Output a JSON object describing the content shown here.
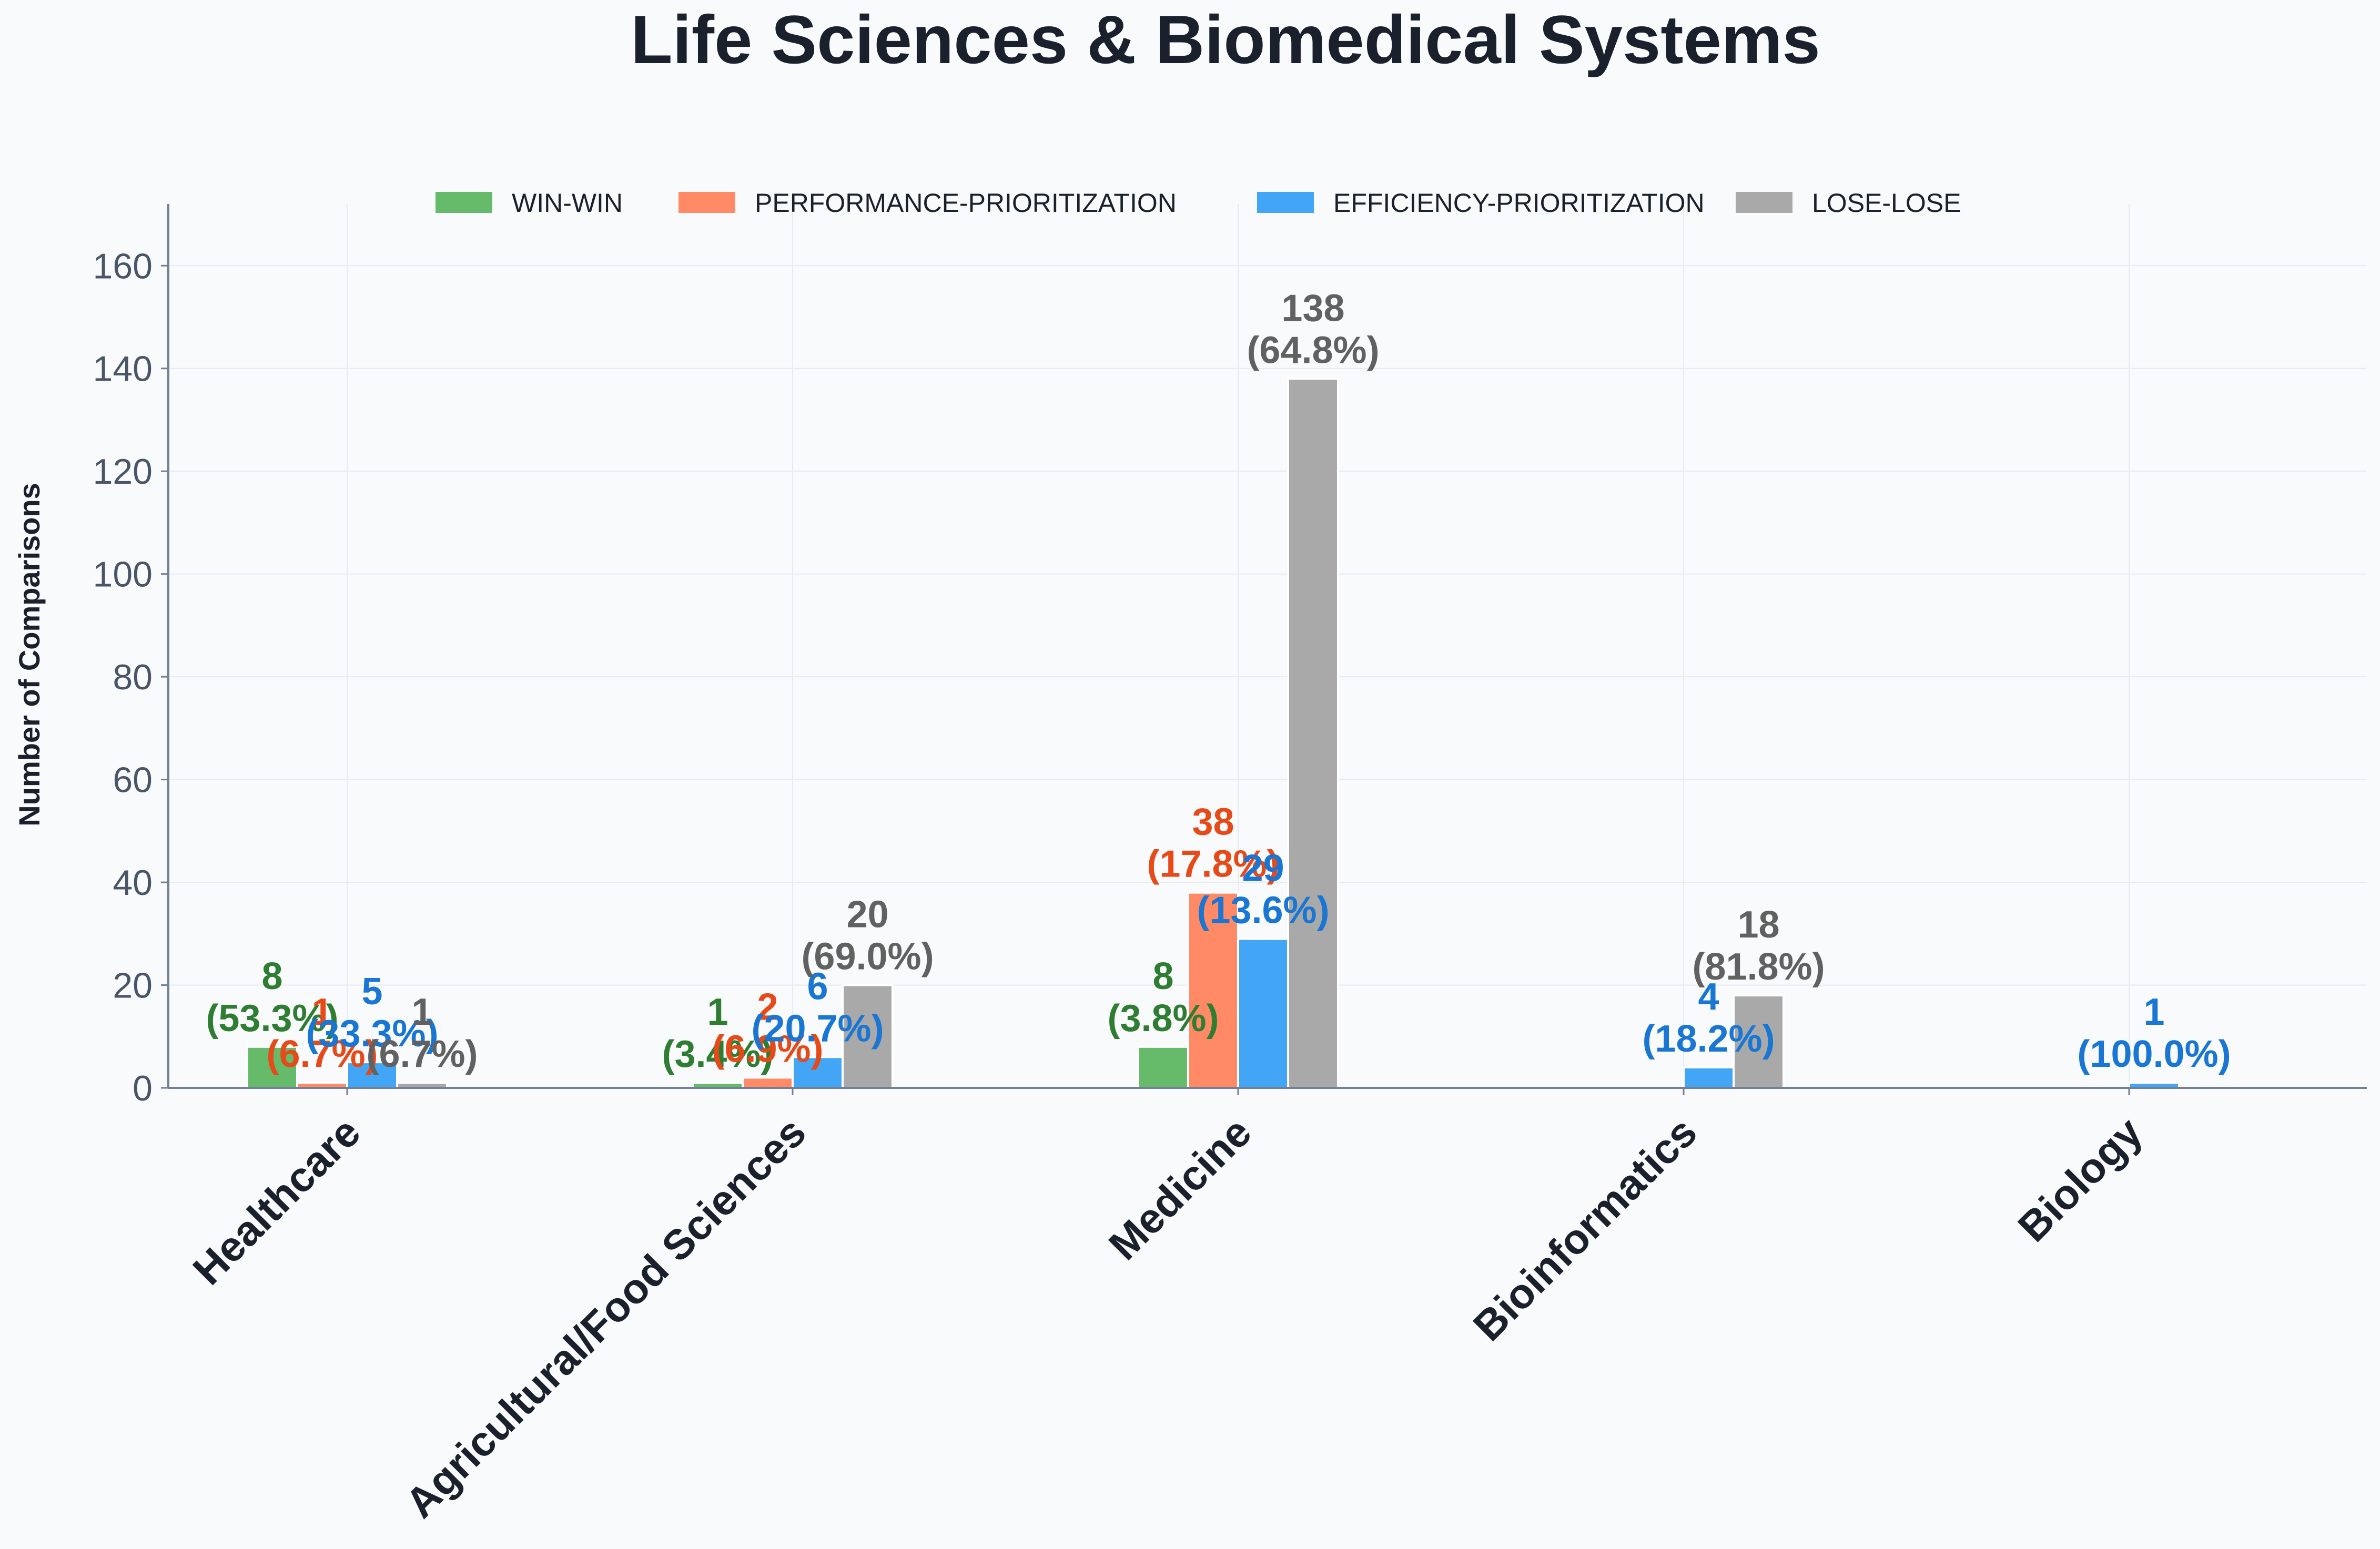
{
  "chart_data": {
    "type": "bar",
    "title": "Life Sciences & Biomedical Systems",
    "xlabel": "",
    "ylabel": "Number of Comparisons",
    "ylim": [
      0,
      172
    ],
    "yticks": [
      0,
      20,
      40,
      60,
      80,
      100,
      120,
      140,
      160
    ],
    "grid": true,
    "legend_position": "top-center",
    "categories": [
      "Healthcare",
      "Agricultural/Food Sciences",
      "Medicine",
      "Bioinformatics",
      "Biology"
    ],
    "series": [
      {
        "name": "WIN-WIN",
        "color": "#66bb6a",
        "label_color": "#2e7d32",
        "values": [
          8,
          1,
          8,
          0,
          0
        ],
        "percents": [
          "53.3%",
          "3.4%",
          "3.8%",
          "",
          ""
        ]
      },
      {
        "name": "PERFORMANCE-PRIORITIZATION",
        "color": "#ff8a65",
        "label_color": "#e64a19",
        "values": [
          1,
          2,
          38,
          0,
          0
        ],
        "percents": [
          "6.7%",
          "6.9%",
          "17.8%",
          "",
          ""
        ]
      },
      {
        "name": "EFFICIENCY-PRIORITIZATION",
        "color": "#42a5f5",
        "label_color": "#1976d2",
        "values": [
          5,
          6,
          29,
          4,
          1
        ],
        "percents": [
          "33.3%",
          "20.7%",
          "13.6%",
          "18.2%",
          "100.0%"
        ]
      },
      {
        "name": "LOSE-LOSE",
        "color": "#a9a9a9",
        "label_color": "#616161",
        "values": [
          1,
          20,
          138,
          18,
          0
        ],
        "percents": [
          "6.7%",
          "69.0%",
          "64.8%",
          "81.8%",
          ""
        ]
      }
    ]
  }
}
